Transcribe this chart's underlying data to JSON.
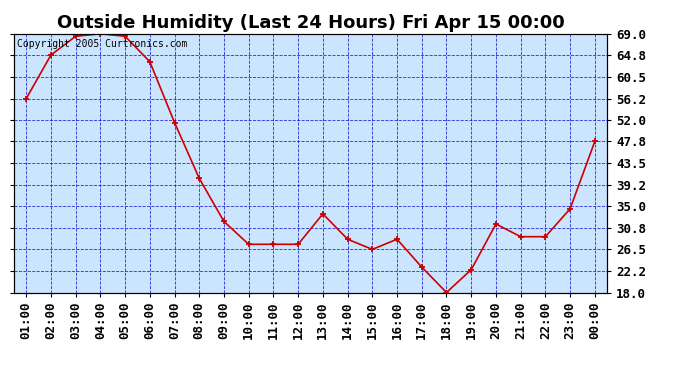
{
  "title": "Outside Humidity (Last 24 Hours) Fri Apr 15 00:00",
  "copyright": "Copyright 2005 Curtronics.com",
  "x_labels": [
    "01:00",
    "02:00",
    "03:00",
    "04:00",
    "05:00",
    "06:00",
    "07:00",
    "08:00",
    "09:00",
    "10:00",
    "11:00",
    "12:00",
    "13:00",
    "14:00",
    "15:00",
    "16:00",
    "17:00",
    "18:00",
    "19:00",
    "20:00",
    "21:00",
    "22:00",
    "23:00",
    "00:00"
  ],
  "y_values": [
    56.2,
    64.8,
    68.5,
    69.0,
    68.5,
    63.5,
    51.5,
    40.5,
    32.0,
    27.5,
    27.5,
    27.5,
    33.5,
    28.5,
    26.5,
    28.5,
    23.0,
    18.0,
    22.5,
    31.5,
    29.0,
    29.0,
    34.5,
    47.8
  ],
  "ylim_min": 18.0,
  "ylim_max": 69.0,
  "y_ticks": [
    18.0,
    22.2,
    26.5,
    30.8,
    35.0,
    39.2,
    43.5,
    47.8,
    52.0,
    56.2,
    60.5,
    64.8,
    69.0
  ],
  "y_tick_labels": [
    "18.0",
    "22.2",
    "26.5",
    "30.8",
    "35.0",
    "39.2",
    "43.5",
    "47.8",
    "52.0",
    "56.2",
    "60.5",
    "64.8",
    "69.0"
  ],
  "line_color": "#cc0000",
  "marker_color": "#cc0000",
  "plot_bg_color": "#cce5ff",
  "outer_bg_color": "#ffffff",
  "grid_color": "#0000cc",
  "title_fontsize": 13,
  "tick_fontsize": 9,
  "copyright_fontsize": 7
}
